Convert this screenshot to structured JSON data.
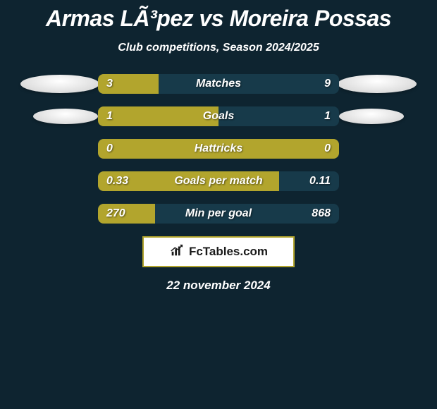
{
  "background_color": "#0e2430",
  "text_color": "#ffffff",
  "title": "Armas LÃ³pez vs Moreira Possas",
  "subtitle": "Club competitions, Season 2024/2025",
  "orb_gradient_top": "#ffffff",
  "orb_gradient_bottom": "#d8d8d8",
  "bar_left_color": "#b2a52d",
  "bar_right_color": "#173a4a",
  "bar_border_radius": 8,
  "rows": [
    {
      "label": "Matches",
      "left_val": "3",
      "right_val": "9",
      "left_pct": 25,
      "right_pct": 75,
      "orb_left_w": 112,
      "orb_left_h": 26,
      "orb_right_w": 112,
      "orb_right_h": 26,
      "orb_left_ml": 0,
      "orb_right_mr": 0
    },
    {
      "label": "Goals",
      "left_val": "1",
      "right_val": "1",
      "left_pct": 50,
      "right_pct": 50,
      "orb_left_w": 92,
      "orb_left_h": 22,
      "orb_right_w": 92,
      "orb_right_h": 22,
      "orb_left_ml": 18,
      "orb_right_mr": 18
    },
    {
      "label": "Hattricks",
      "left_val": "0",
      "right_val": "0",
      "left_pct": 100,
      "right_pct": 0,
      "orb_left_w": 0,
      "orb_left_h": 0,
      "orb_right_w": 0,
      "orb_right_h": 0,
      "orb_left_ml": 0,
      "orb_right_mr": 0
    },
    {
      "label": "Goals per match",
      "left_val": "0.33",
      "right_val": "0.11",
      "left_pct": 75,
      "right_pct": 25,
      "orb_left_w": 0,
      "orb_left_h": 0,
      "orb_right_w": 0,
      "orb_right_h": 0,
      "orb_left_ml": 0,
      "orb_right_mr": 0
    },
    {
      "label": "Min per goal",
      "left_val": "270",
      "right_val": "868",
      "left_pct": 23.7,
      "right_pct": 76.3,
      "orb_left_w": 0,
      "orb_left_h": 0,
      "orb_right_w": 0,
      "orb_right_h": 0,
      "orb_left_ml": 0,
      "orb_right_mr": 0
    }
  ],
  "badge": {
    "background": "#ffffff",
    "border_color": "#b2a52d",
    "text": "FcTables.com",
    "text_color": "#1a1a1a",
    "icon_color": "#1a1a1a"
  },
  "date": "22 november 2024"
}
